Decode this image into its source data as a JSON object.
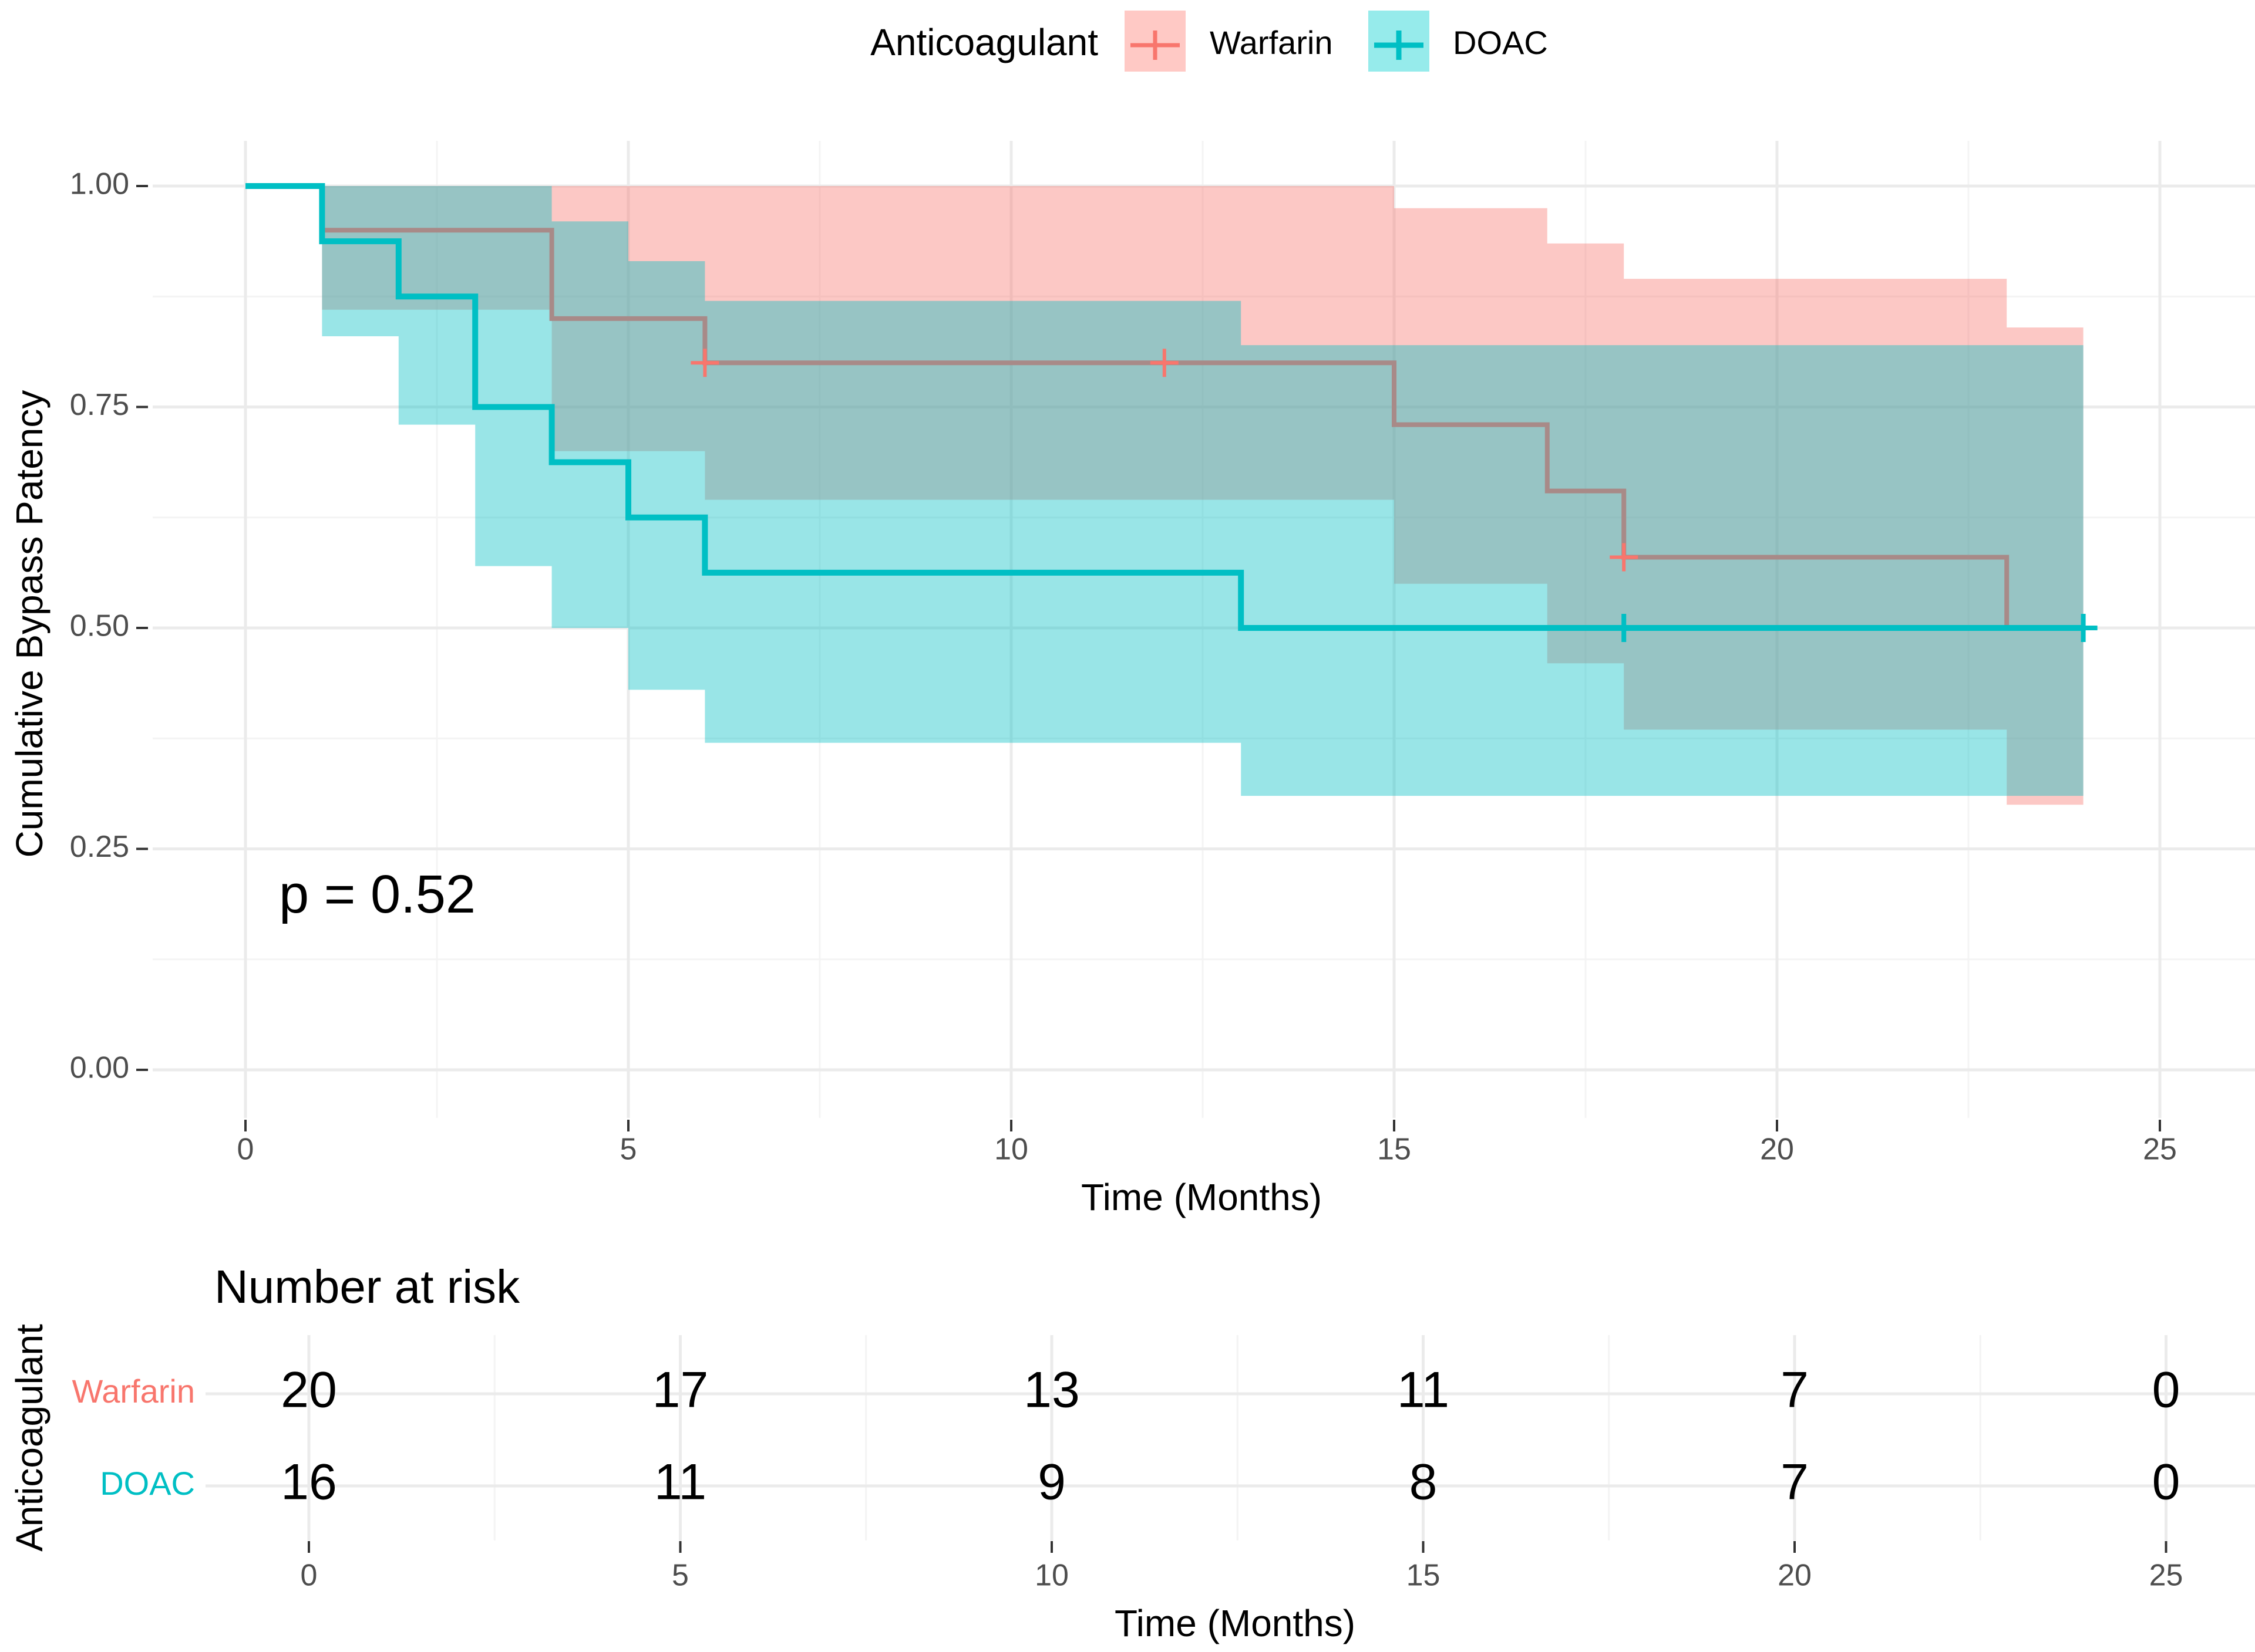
{
  "chart_data": {
    "type": "line",
    "subtype": "kaplan-meier",
    "legend": {
      "title": "Anticoagulant",
      "position": "top",
      "entries": [
        "Warfarin",
        "DOAC"
      ]
    },
    "xlabel": "Time (Months)",
    "ylabel": "Cumulative Bypass Patency",
    "xlim": [
      0,
      25
    ],
    "ylim": [
      0,
      1
    ],
    "xticks": [
      0,
      5,
      10,
      15,
      20,
      25
    ],
    "xtick_labels": [
      "0",
      "5",
      "10",
      "15",
      "20",
      "25"
    ],
    "yticks": [
      0,
      0.25,
      0.5,
      0.75,
      1.0
    ],
    "ytick_labels": [
      "0.00",
      "0.25",
      "0.50",
      "0.75",
      "1.00"
    ],
    "grid": true,
    "annotation": "p = 0.52",
    "series": [
      {
        "name": "Warfarin",
        "color": "#F8766D",
        "line_color": "#A88A88",
        "band_color": "#FFC9C5",
        "steps": [
          [
            0,
            1.0
          ],
          [
            1,
            0.95
          ],
          [
            4,
            0.85
          ],
          [
            6,
            0.8
          ],
          [
            15,
            0.73
          ],
          [
            17,
            0.655
          ],
          [
            18,
            0.58
          ],
          [
            23,
            0.5
          ],
          [
            24,
            0.5
          ]
        ],
        "ci_upper": [
          [
            0,
            1.0
          ],
          [
            1,
            1.0
          ],
          [
            4,
            1.0
          ],
          [
            6,
            1.0
          ],
          [
            13,
            1.0
          ],
          [
            15,
            0.975
          ],
          [
            17,
            0.935
          ],
          [
            18,
            0.895
          ],
          [
            23,
            0.84
          ],
          [
            24,
            0.84
          ]
        ],
        "ci_lower": [
          [
            0,
            1.0
          ],
          [
            1,
            0.86
          ],
          [
            4,
            0.7
          ],
          [
            6,
            0.645
          ],
          [
            13,
            0.645
          ],
          [
            15,
            0.55
          ],
          [
            17,
            0.46
          ],
          [
            18,
            0.385
          ],
          [
            23,
            0.3
          ],
          [
            24,
            0.3
          ]
        ],
        "censored": [
          [
            6,
            0.8
          ],
          [
            12,
            0.8
          ],
          [
            18,
            0.58
          ]
        ]
      },
      {
        "name": "DOAC",
        "color": "#00BFC4",
        "line_color": "#00BFC4",
        "band_color": "#96EBEB",
        "steps": [
          [
            0,
            1.0
          ],
          [
            1,
            0.9375
          ],
          [
            2,
            0.875
          ],
          [
            3,
            0.75
          ],
          [
            4,
            0.6875
          ],
          [
            5,
            0.625
          ],
          [
            6,
            0.5625
          ],
          [
            13,
            0.5
          ],
          [
            24,
            0.5
          ]
        ],
        "ci_upper": [
          [
            0,
            1.0
          ],
          [
            1,
            1.0
          ],
          [
            2,
            1.0
          ],
          [
            3,
            1.0
          ],
          [
            4,
            0.96
          ],
          [
            5,
            0.915
          ],
          [
            6,
            0.87
          ],
          [
            13,
            0.82
          ],
          [
            24,
            0.82
          ]
        ],
        "ci_lower": [
          [
            0,
            1.0
          ],
          [
            1,
            0.83
          ],
          [
            2,
            0.73
          ],
          [
            3,
            0.57
          ],
          [
            4,
            0.5
          ],
          [
            5,
            0.43
          ],
          [
            6,
            0.37
          ],
          [
            13,
            0.31
          ],
          [
            23,
            0.31
          ],
          [
            24,
            0.31
          ]
        ],
        "censored": [
          [
            18,
            0.5
          ],
          [
            24,
            0.5
          ]
        ]
      }
    ],
    "risk_table": {
      "title": "Number at risk",
      "row_axis_label": "Anticoagulant",
      "xlabel": "Time (Months)",
      "times": [
        0,
        5,
        10,
        15,
        20,
        25
      ],
      "time_labels": [
        "0",
        "5",
        "10",
        "15",
        "20",
        "25"
      ],
      "rows": [
        {
          "group": "Warfarin",
          "counts": [
            "20",
            "17",
            "13",
            "11",
            "7",
            "0"
          ]
        },
        {
          "group": "DOAC",
          "counts": [
            "16",
            "11",
            "9",
            "8",
            "7",
            "0"
          ]
        }
      ]
    }
  }
}
